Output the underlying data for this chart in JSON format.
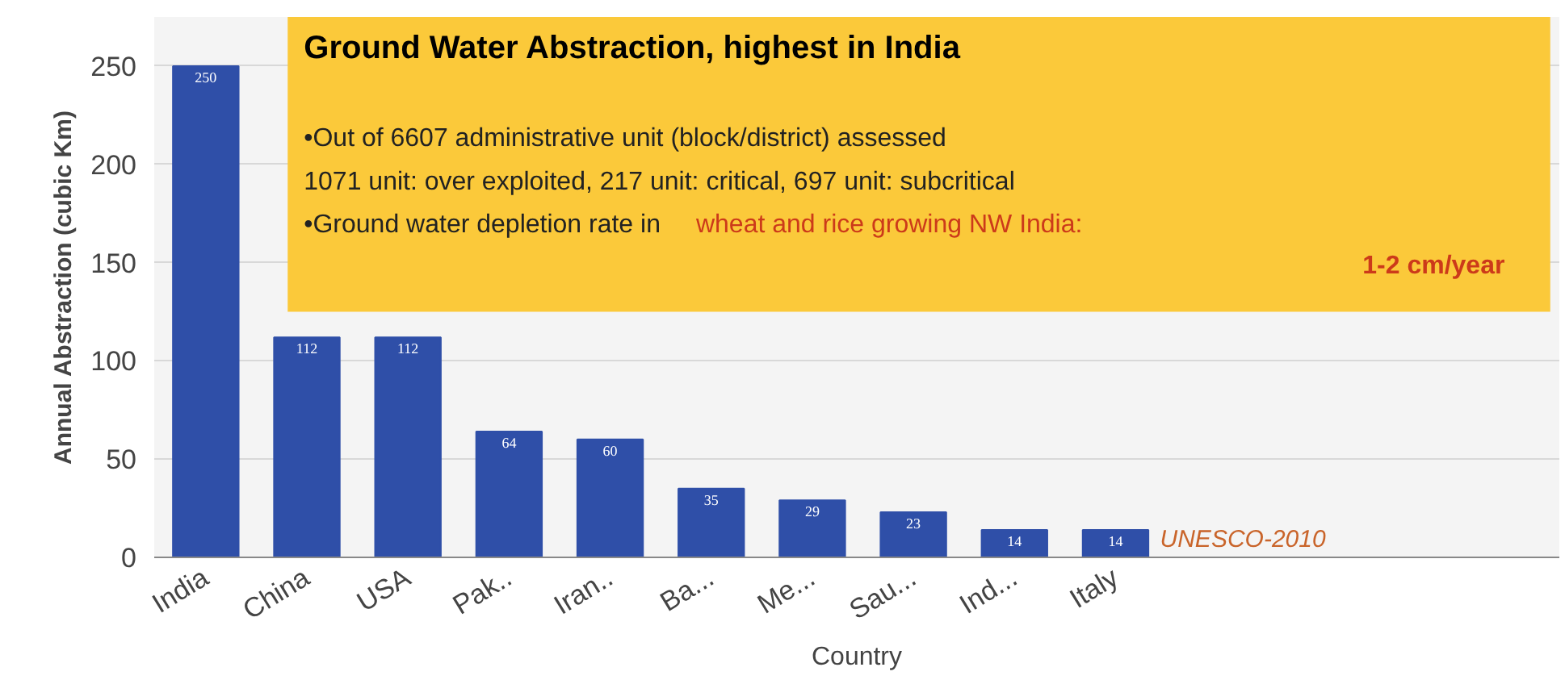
{
  "chart_data": {
    "type": "bar",
    "title": "Ground Water Abstraction, highest in India",
    "xlabel": "Country",
    "ylabel": "Annual Abstraction (cubic Km)",
    "categories": [
      "India",
      "China",
      "USA",
      "Pak..",
      "Iran..",
      "Ba...",
      "Me...",
      "Sau...",
      "Ind...",
      "Italy"
    ],
    "values": [
      250,
      112,
      112,
      64,
      60,
      35,
      29,
      23,
      14,
      14
    ],
    "color": "#2f4fa8",
    "ylim": [
      0,
      275
    ],
    "yticks": [
      0,
      50,
      100,
      150,
      200,
      250
    ],
    "grid": "y",
    "data_labels": true,
    "annotations": [
      "•Out of 6607 administrative unit (block/district) assessed",
      " 1071 unit: over exploited, 217 unit: critical, 697 unit: subcritical",
      "•Ground water depletion rate in",
      "wheat and rice growing NW India:",
      "1-2 cm/year",
      "UNESCO-2010"
    ]
  }
}
